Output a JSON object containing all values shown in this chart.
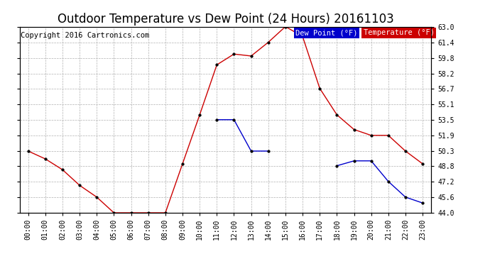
{
  "title": "Outdoor Temperature vs Dew Point (24 Hours) 20161103",
  "copyright": "Copyright 2016 Cartronics.com",
  "legend_dew": "Dew Point (°F)",
  "legend_temp": "Temperature (°F)",
  "hours": [
    "00:00",
    "01:00",
    "02:00",
    "03:00",
    "04:00",
    "05:00",
    "06:00",
    "07:00",
    "08:00",
    "09:00",
    "10:00",
    "11:00",
    "12:00",
    "13:00",
    "14:00",
    "15:00",
    "16:00",
    "17:00",
    "18:00",
    "19:00",
    "20:00",
    "21:00",
    "22:00",
    "23:00"
  ],
  "temperature": [
    50.3,
    49.5,
    48.4,
    46.8,
    45.6,
    44.0,
    44.0,
    44.0,
    44.0,
    49.0,
    54.0,
    59.1,
    60.2,
    60.0,
    61.4,
    63.0,
    62.0,
    56.7,
    54.0,
    52.5,
    51.9,
    51.9,
    50.3,
    49.0
  ],
  "dew_segs_x": [
    [
      11,
      12,
      13,
      14
    ],
    [
      18,
      19,
      20,
      21,
      22,
      23
    ]
  ],
  "dew_segs_y": [
    [
      53.5,
      53.5,
      50.3,
      50.3
    ],
    [
      48.8,
      49.3,
      49.3,
      47.2,
      45.6,
      45.0
    ]
  ],
  "temperature_color": "#cc0000",
  "dew_point_color": "#0000cc",
  "background_color": "#ffffff",
  "grid_color": "#b0b0b0",
  "ylim": [
    44.0,
    63.0
  ],
  "yticks": [
    44.0,
    45.6,
    47.2,
    48.8,
    50.3,
    51.9,
    53.5,
    55.1,
    56.7,
    58.2,
    59.8,
    61.4,
    63.0
  ],
  "title_fontsize": 12,
  "copyright_fontsize": 7.5,
  "legend_fontsize": 7.5,
  "tick_fontsize": 7
}
